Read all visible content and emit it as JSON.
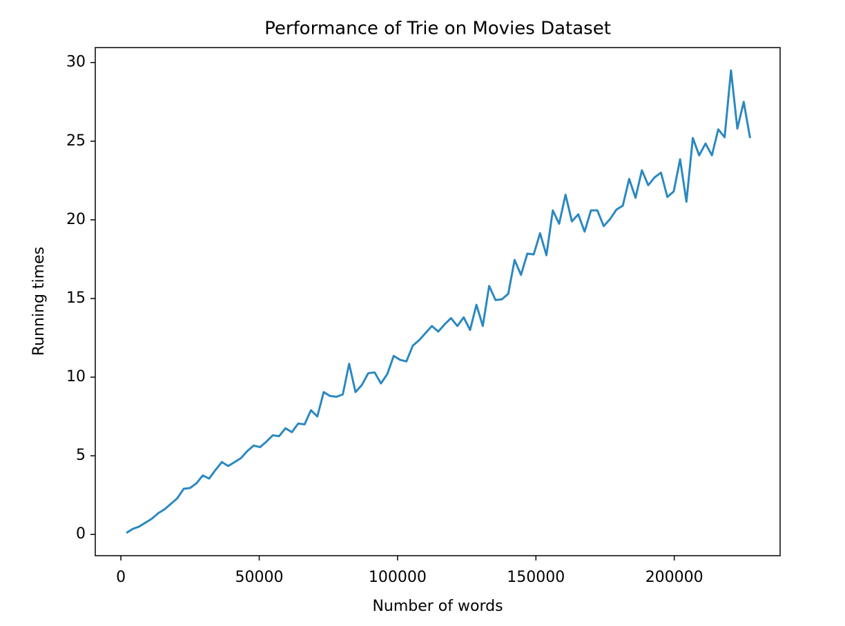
{
  "chart_data": {
    "type": "line",
    "title": "Performance of Trie on Movies Dataset",
    "x_label": "Number of words",
    "y_label": "Running times",
    "x": [
      2000,
      4300,
      6600,
      8900,
      11200,
      13500,
      15800,
      18100,
      20400,
      22700,
      25000,
      27300,
      29600,
      31900,
      34200,
      36500,
      38800,
      41100,
      43400,
      45700,
      48000,
      50300,
      52600,
      54900,
      57200,
      59500,
      61800,
      64100,
      66400,
      68700,
      71000,
      73300,
      75600,
      77900,
      80200,
      82500,
      84800,
      87100,
      89400,
      91700,
      94000,
      96300,
      98600,
      100900,
      103200,
      105500,
      107800,
      110100,
      112400,
      114700,
      117000,
      119300,
      121600,
      123900,
      126200,
      128500,
      130800,
      133100,
      135400,
      137700,
      140000,
      142300,
      144600,
      146900,
      149200,
      151500,
      153800,
      156100,
      158400,
      160700,
      163000,
      165300,
      167600,
      169900,
      172200,
      174500,
      176800,
      179100,
      181400,
      183700,
      186000,
      188300,
      190600,
      192900,
      195200,
      197500,
      199800,
      202100,
      204400,
      206700,
      209000,
      211300,
      213600,
      215900,
      218200,
      220500,
      222800,
      225100,
      227400
    ],
    "series": [
      {
        "name": "Running times",
        "color": "#2a88c0",
        "values": [
          0.1,
          0.35,
          0.5,
          0.75,
          1.0,
          1.35,
          1.6,
          1.95,
          2.3,
          2.9,
          2.95,
          3.25,
          3.75,
          3.55,
          4.1,
          4.6,
          4.35,
          4.6,
          4.85,
          5.3,
          5.65,
          5.55,
          5.9,
          6.3,
          6.25,
          6.75,
          6.5,
          7.05,
          7.0,
          7.9,
          7.5,
          9.05,
          8.8,
          8.75,
          8.9,
          10.85,
          9.05,
          9.5,
          10.25,
          10.3,
          9.6,
          10.2,
          11.35,
          11.1,
          11.0,
          12.0,
          12.35,
          12.8,
          13.25,
          12.9,
          13.35,
          13.75,
          13.25,
          13.8,
          13.0,
          14.6,
          13.25,
          15.8,
          14.9,
          14.95,
          15.3,
          17.45,
          16.5,
          17.85,
          17.8,
          19.15,
          17.75,
          20.6,
          19.75,
          21.6,
          19.9,
          20.35,
          19.25,
          20.6,
          20.6,
          19.6,
          20.05,
          20.65,
          20.9,
          22.6,
          21.4,
          23.15,
          22.2,
          22.7,
          23.0,
          21.45,
          21.8,
          23.85,
          21.15,
          25.2,
          24.1,
          24.85,
          24.1,
          25.75,
          25.25,
          29.5,
          25.8,
          27.5,
          25.2
        ]
      }
    ],
    "xlim": [
      -9250,
      238250
    ],
    "xticks": [
      0,
      50000,
      100000,
      150000,
      200000
    ],
    "ylim": [
      -1.35,
      30.95
    ],
    "yticks": [
      0,
      5,
      10,
      15,
      20,
      25,
      30
    ],
    "grid": false
  }
}
